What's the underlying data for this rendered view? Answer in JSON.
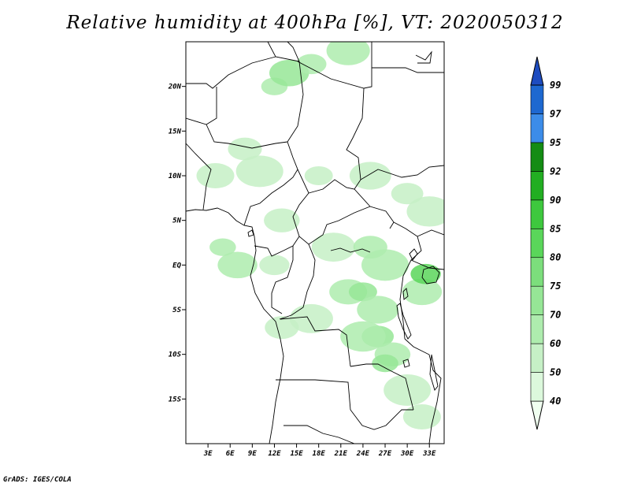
{
  "title": "Relative humidity at 400hPa [%], VT: 2020050312",
  "credit": "GrADS: IGES/COLA",
  "map": {
    "lon_range": [
      0,
      35
    ],
    "lat_range": [
      -20,
      25
    ],
    "lon_ticks": [
      {
        "value": 3,
        "label": "3E"
      },
      {
        "value": 6,
        "label": "6E"
      },
      {
        "value": 9,
        "label": "9E"
      },
      {
        "value": 12,
        "label": "12E"
      },
      {
        "value": 15,
        "label": "15E"
      },
      {
        "value": 18,
        "label": "18E"
      },
      {
        "value": 21,
        "label": "21E"
      },
      {
        "value": 24,
        "label": "24E"
      },
      {
        "value": 27,
        "label": "27E"
      },
      {
        "value": 30,
        "label": "30E"
      },
      {
        "value": 33,
        "label": "33E"
      }
    ],
    "lat_ticks": [
      {
        "value": 20,
        "label": "20N"
      },
      {
        "value": 15,
        "label": "15N"
      },
      {
        "value": 10,
        "label": "10N"
      },
      {
        "value": 5,
        "label": "5N"
      },
      {
        "value": 0,
        "label": "EQ"
      },
      {
        "value": -5,
        "label": "5S"
      },
      {
        "value": -10,
        "label": "10S"
      },
      {
        "value": -15,
        "label": "15S"
      }
    ],
    "humidity_fields": [
      {
        "lon": 12,
        "lat": 20,
        "level": 60
      },
      {
        "lon": 14,
        "lat": 21.5,
        "level": 70
      },
      {
        "lon": 17,
        "lat": 22.5,
        "level": 60
      },
      {
        "lon": 22,
        "lat": 24,
        "level": 60
      },
      {
        "lon": 8,
        "lat": 13,
        "level": 50
      },
      {
        "lon": 10,
        "lat": 10.5,
        "level": 50
      },
      {
        "lon": 4,
        "lat": 10,
        "level": 50
      },
      {
        "lon": 18,
        "lat": 10,
        "level": 50
      },
      {
        "lon": 25,
        "lat": 10,
        "level": 50
      },
      {
        "lon": 30,
        "lat": 8,
        "level": 50
      },
      {
        "lon": 33,
        "lat": 6,
        "level": 50
      },
      {
        "lon": 13,
        "lat": 5,
        "level": 50
      },
      {
        "lon": 5,
        "lat": 2,
        "level": 60
      },
      {
        "lon": 7,
        "lat": 0,
        "level": 60
      },
      {
        "lon": 12,
        "lat": 0,
        "level": 50
      },
      {
        "lon": 20,
        "lat": 2,
        "level": 50
      },
      {
        "lon": 25,
        "lat": 2,
        "level": 60
      },
      {
        "lon": 27,
        "lat": 0,
        "level": 60
      },
      {
        "lon": 22,
        "lat": -3,
        "level": 60
      },
      {
        "lon": 24,
        "lat": -3,
        "level": 70
      },
      {
        "lon": 26,
        "lat": -5,
        "level": 60
      },
      {
        "lon": 26,
        "lat": -8,
        "level": 70
      },
      {
        "lon": 24,
        "lat": -8,
        "level": 60
      },
      {
        "lon": 28,
        "lat": -10,
        "level": 60
      },
      {
        "lon": 27,
        "lat": -11,
        "level": 70
      },
      {
        "lon": 32,
        "lat": -3,
        "level": 60
      },
      {
        "lon": 32.5,
        "lat": -1,
        "level": 80
      },
      {
        "lon": 17,
        "lat": -6,
        "level": 50
      },
      {
        "lon": 13,
        "lat": -7,
        "level": 50
      },
      {
        "lon": 30,
        "lat": -14,
        "level": 50
      },
      {
        "lon": 32,
        "lat": -17,
        "level": 50
      }
    ]
  },
  "colorbar": {
    "levels": [
      40,
      50,
      60,
      70,
      75,
      80,
      85,
      90,
      92,
      95,
      97,
      99
    ],
    "labels": [
      "40",
      "50",
      "60",
      "70",
      "75",
      "80",
      "85",
      "90",
      "92",
      "95",
      "97",
      "99"
    ],
    "colors": [
      "#f0fff0",
      "#dcf8dc",
      "#c6f0c6",
      "#aeecae",
      "#96e696",
      "#7cde7c",
      "#5ad65a",
      "#3ec83e",
      "#22ae22",
      "#148c14",
      "#3c8ce8",
      "#1e68d0",
      "#1e4cc0"
    ]
  }
}
